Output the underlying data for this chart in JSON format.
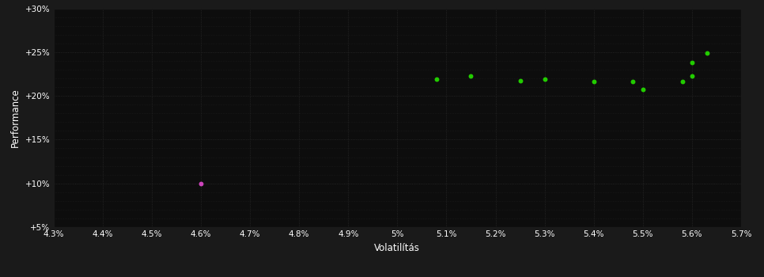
{
  "bg_outer": "#1a1a1a",
  "bg_plot": "#0d0d0d",
  "grid_color": "#2a2a2a",
  "text_color": "#ffffff",
  "xlabel": "Volatilítás",
  "ylabel": "Performance",
  "xlim": [
    0.043,
    0.057
  ],
  "ylim": [
    0.05,
    0.3
  ],
  "xticks": [
    0.043,
    0.044,
    0.045,
    0.046,
    0.047,
    0.048,
    0.049,
    0.05,
    0.051,
    0.052,
    0.053,
    0.054,
    0.055,
    0.056,
    0.057
  ],
  "yticks": [
    0.05,
    0.1,
    0.15,
    0.2,
    0.25,
    0.3
  ],
  "xtick_labels": [
    "4.3%",
    "4.4%",
    "4.5%",
    "4.6%",
    "4.7%",
    "4.8%",
    "4.9%",
    "5%",
    "5.1%",
    "5.2%",
    "5.3%",
    "5.4%",
    "5.5%",
    "5.6%",
    "5.7%"
  ],
  "ytick_labels": [
    "+5%",
    "+10%",
    "+15%",
    "+20%",
    "+25%",
    "+30%"
  ],
  "green_points": [
    [
      0.0508,
      0.219
    ],
    [
      0.0515,
      0.223
    ],
    [
      0.0525,
      0.217
    ],
    [
      0.053,
      0.219
    ],
    [
      0.054,
      0.216
    ],
    [
      0.0548,
      0.216
    ],
    [
      0.055,
      0.207
    ],
    [
      0.0558,
      0.216
    ],
    [
      0.056,
      0.223
    ],
    [
      0.056,
      0.238
    ],
    [
      0.0563,
      0.249
    ]
  ],
  "magenta_points": [
    [
      0.046,
      0.1
    ]
  ],
  "green_color": "#22cc00",
  "magenta_color": "#cc44bb",
  "point_size": 18,
  "fontsize_ticks": 7.5,
  "fontsize_labels": 8.5
}
